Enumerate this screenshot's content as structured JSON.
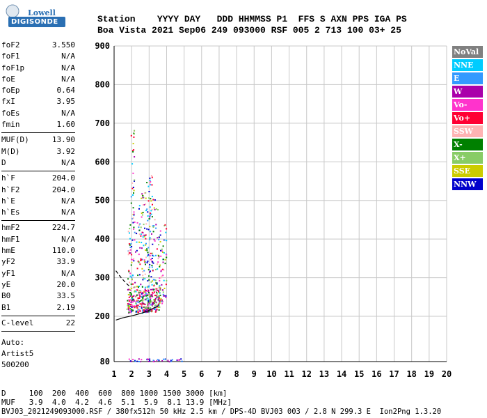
{
  "logo": {
    "brand1": "Lowell",
    "brand2": "DIGISONDE"
  },
  "header": {
    "line1": "Station    YYYY DAY   DDD HHMMSS P1  FFS S AXN PPS IGA PS",
    "line2": "Boa Vista 2021 Sep06 249 093000 RSF 005 2 713 100 03+ 25"
  },
  "params": {
    "group1": [
      {
        "label": "foF2",
        "value": "3.550"
      },
      {
        "label": "foF1",
        "value": "N/A"
      },
      {
        "label": "foF1p",
        "value": "N/A"
      },
      {
        "label": "foE",
        "value": "N/A"
      },
      {
        "label": "foEp",
        "value": "0.64"
      },
      {
        "label": "fxI",
        "value": "3.95"
      },
      {
        "label": "foEs",
        "value": "N/A"
      },
      {
        "label": "fmin",
        "value": "1.60"
      }
    ],
    "group2": [
      {
        "label": "MUF(D)",
        "value": "13.90"
      },
      {
        "label": "M(D)",
        "value": "3.92"
      },
      {
        "label": "D",
        "value": "N/A"
      }
    ],
    "group3": [
      {
        "label": "h`F",
        "value": "204.0"
      },
      {
        "label": "h`F2",
        "value": "204.0"
      },
      {
        "label": "h`E",
        "value": "N/A"
      },
      {
        "label": "h`Es",
        "value": "N/A"
      }
    ],
    "group4": [
      {
        "label": "hmF2",
        "value": "224.7"
      },
      {
        "label": "hmF1",
        "value": "N/A"
      },
      {
        "label": "hmE",
        "value": "110.0"
      },
      {
        "label": "yF2",
        "value": "33.9"
      },
      {
        "label": "yF1",
        "value": "N/A"
      },
      {
        "label": "yE",
        "value": "20.0"
      },
      {
        "label": "B0",
        "value": "33.5"
      },
      {
        "label": "B1",
        "value": "2.19"
      }
    ],
    "group5": [
      {
        "label": "C-level",
        "value": "22"
      }
    ]
  },
  "auto": {
    "line1": "Auto:",
    "line2": "Artist5",
    "line3": "500200"
  },
  "legend": [
    {
      "label": "NoVal",
      "color": "#808080"
    },
    {
      "label": "NNE",
      "color": "#00ccff"
    },
    {
      "label": "E",
      "color": "#3399ff"
    },
    {
      "label": "W",
      "color": "#aa00aa"
    },
    {
      "label": "Vo-",
      "color": "#ff33cc"
    },
    {
      "label": "Vo+",
      "color": "#ff0033"
    },
    {
      "label": "SSW",
      "color": "#ffb3b3"
    },
    {
      "label": "X-",
      "color": "#008000"
    },
    {
      "label": "X+",
      "color": "#88cc66"
    },
    {
      "label": "SSE",
      "color": "#cccc00"
    },
    {
      "label": "NNW",
      "color": "#0000cc"
    }
  ],
  "bottom": {
    "line1": "D     100  200  400  600  800 1000 1500 3000 [km]",
    "line2": "MUF   3.9  4.0  4.2  4.6  5.1  5.9  8.1 13.9 [MHz]",
    "line3": "BVJ03_2021249093000.RSF / 380fx512h 50 kHz 2.5 km / DPS-4D BVJ03 003 / 2.8 N 299.3 E  Ion2Png 1.3.20"
  },
  "chart_data": {
    "type": "scatter",
    "xlim": [
      1,
      20
    ],
    "ylim": [
      80,
      900
    ],
    "x_ticks": [
      1,
      2,
      3,
      4,
      5,
      6,
      7,
      8,
      9,
      10,
      11,
      12,
      13,
      14,
      15,
      16,
      17,
      18,
      19,
      20
    ],
    "y_ticks": [
      80,
      200,
      300,
      400,
      500,
      600,
      700,
      800,
      900
    ],
    "grid": true,
    "trace_o": {
      "name": "O-trace",
      "x": [
        1.1,
        1.5,
        2.0,
        2.5,
        2.9,
        3.1,
        3.3,
        3.5
      ],
      "y": [
        190,
        196,
        201,
        207,
        213,
        218,
        222,
        225
      ]
    },
    "trace_x": {
      "name": "X-trace",
      "x": [
        1.1,
        1.4,
        1.7,
        1.95
      ],
      "y": [
        318,
        300,
        285,
        275
      ]
    },
    "echo_columns": [
      {
        "x": 1.85,
        "ymin": 210,
        "ymax": 440
      },
      {
        "x": 2.05,
        "ymin": 215,
        "ymax": 690
      },
      {
        "x": 2.3,
        "ymin": 212,
        "ymax": 460
      },
      {
        "x": 2.5,
        "ymin": 215,
        "ymax": 520
      },
      {
        "x": 2.7,
        "ymin": 210,
        "ymax": 560
      },
      {
        "x": 2.9,
        "ymin": 212,
        "ymax": 565
      },
      {
        "x": 3.05,
        "ymin": 215,
        "ymax": 600
      },
      {
        "x": 3.25,
        "ymin": 220,
        "ymax": 520
      },
      {
        "x": 3.45,
        "ymin": 225,
        "ymax": 480
      },
      {
        "x": 3.65,
        "ymin": 235,
        "ymax": 440
      },
      {
        "x": 3.85,
        "ymin": 250,
        "ymax": 440
      }
    ],
    "e_layer_echoes": {
      "xmin": 1.8,
      "xmax": 5.0,
      "y": 85
    }
  }
}
